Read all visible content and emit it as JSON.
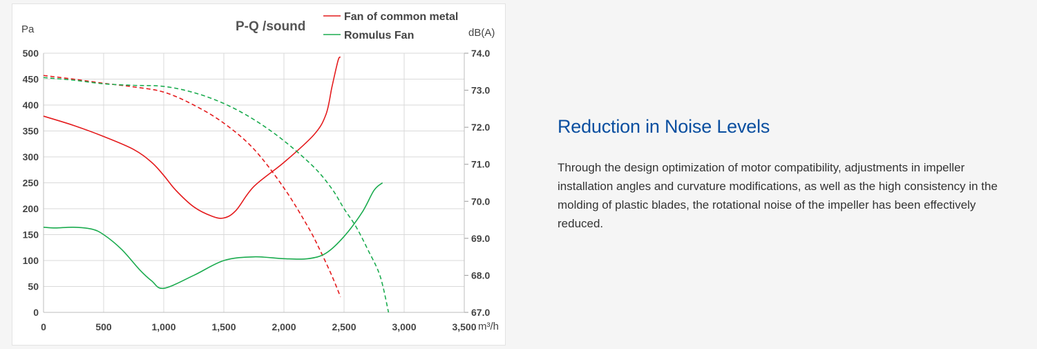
{
  "colors": {
    "common_metal": "#e41a1c",
    "romulus": "#1aab4e",
    "heading": "#0b4fa0"
  },
  "info": {
    "title": "Reduction in Noise Levels",
    "body": "Through the design optimization of motor compatibility, adjustments in impeller installation angles and curvature modifications, as well as the high consistency in the molding of plastic blades, the rotational noise of the impeller has been effectively reduced."
  },
  "chart_data": {
    "type": "line",
    "title": "P-Q /sound",
    "ylabel": "Pa",
    "y2label": "dB(A)",
    "xunit": "m³/h",
    "xlim": [
      0,
      3500
    ],
    "ylim": [
      0,
      500
    ],
    "y2lim": [
      67.0,
      74.0
    ],
    "grid": true,
    "legend_position": "top-right",
    "xticks": [
      "0",
      "500",
      "1,000",
      "1,500",
      "2,000",
      "2,500",
      "3,000",
      "3,500"
    ],
    "yticks": [
      "0",
      "50",
      "100",
      "150",
      "200",
      "250",
      "300",
      "350",
      "400",
      "450",
      "500"
    ],
    "y2ticks": [
      "67.0",
      "68.0",
      "69.0",
      "70.0",
      "71.0",
      "72.0",
      "73.0",
      "74.0"
    ],
    "legend": [
      {
        "name": "Fan of common metal",
        "color": "#e41a1c"
      },
      {
        "name": "Romulus Fan",
        "color": "#1aab4e"
      }
    ],
    "series": [
      {
        "legend": "Fan of common metal",
        "quantity": "pressure",
        "axis": "left",
        "style": "dashed",
        "color": "#e41a1c",
        "x": [
          0,
          250,
          500,
          750,
          1000,
          1250,
          1500,
          1750,
          2000,
          2200,
          2300,
          2400,
          2470
        ],
        "y": [
          457,
          450,
          442,
          435,
          425,
          400,
          365,
          315,
          240,
          165,
          120,
          70,
          30
        ]
      },
      {
        "legend": "Fan of common metal",
        "quantity": "sound",
        "axis": "right",
        "style": "solid",
        "color": "#e41a1c",
        "x": [
          0,
          250,
          500,
          750,
          900,
          1000,
          1100,
          1250,
          1400,
          1500,
          1600,
          1750,
          2000,
          2250,
          2350,
          2400,
          2450,
          2470
        ],
        "y": [
          72.3,
          72.05,
          71.75,
          71.4,
          71.05,
          70.7,
          70.3,
          69.85,
          69.6,
          69.55,
          69.75,
          70.4,
          71.05,
          71.8,
          72.35,
          73.1,
          73.8,
          73.9
        ]
      },
      {
        "legend": "Romulus Fan",
        "quantity": "pressure",
        "axis": "left",
        "style": "dashed",
        "color": "#1aab4e",
        "x": [
          0,
          250,
          500,
          750,
          1000,
          1250,
          1500,
          1750,
          2000,
          2250,
          2400,
          2500,
          2600,
          2700,
          2800,
          2870
        ],
        "y": [
          453,
          448,
          441,
          438,
          436,
          424,
          403,
          372,
          331,
          280,
          238,
          200,
          165,
          120,
          70,
          0
        ]
      },
      {
        "legend": "Romulus Fan",
        "quantity": "sound",
        "axis": "right",
        "style": "solid",
        "color": "#1aab4e",
        "x": [
          0,
          100,
          250,
          400,
          500,
          650,
          800,
          900,
          1000,
          1250,
          1500,
          1750,
          2000,
          2200,
          2350,
          2500,
          2650,
          2750,
          2820
        ],
        "y": [
          69.3,
          69.28,
          69.3,
          69.25,
          69.1,
          68.7,
          68.15,
          67.85,
          67.65,
          68.0,
          68.4,
          68.5,
          68.45,
          68.45,
          68.6,
          69.05,
          69.7,
          70.3,
          70.5
        ]
      }
    ]
  }
}
